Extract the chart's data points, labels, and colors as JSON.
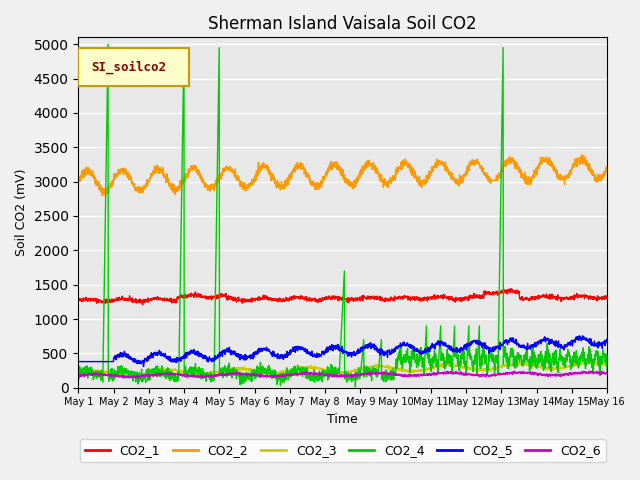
{
  "title": "Sherman Island Vaisala Soil CO2",
  "ylabel": "Soil CO2 (mV)",
  "xlabel": "Time",
  "legend_label": "SI_soilco2",
  "ylim": [
    0,
    5100
  ],
  "colors": {
    "CO2_1": "#ff0000",
    "CO2_2": "#ff9900",
    "CO2_3": "#cccc00",
    "CO2_4": "#00cc00",
    "CO2_5": "#0000ff",
    "CO2_6": "#cc00cc"
  },
  "bg_color": "#e8e8e8",
  "grid_color": "#ffffff",
  "num_points": 2160,
  "day_labels": [
    "May 1",
    "May 2",
    "May 3",
    "May 4",
    "May 5",
    "May 6",
    "May 7",
    "May 8",
    "May 9",
    "May 10",
    "May 11",
    "May 12",
    "May 13",
    "May 14",
    "May 15",
    "May 16"
  ]
}
